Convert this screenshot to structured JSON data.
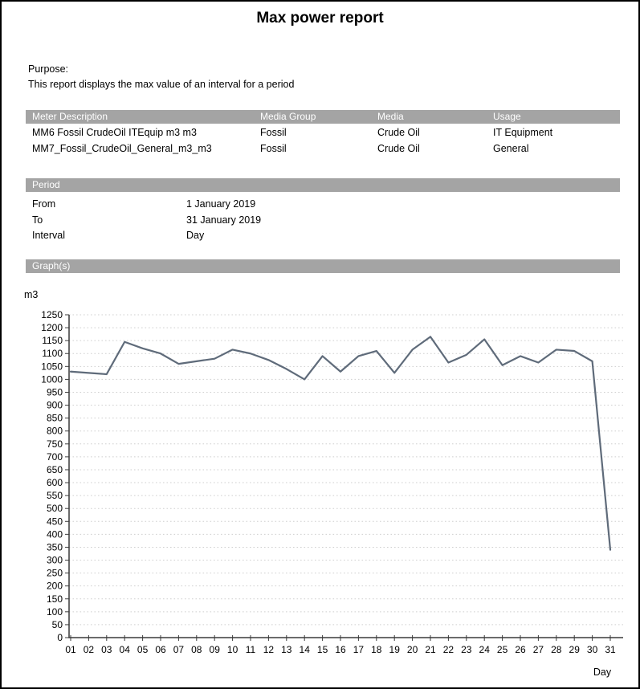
{
  "title": "Max power report",
  "purpose": {
    "label": "Purpose:",
    "text": "This report displays the max value of an interval for a period"
  },
  "meters": {
    "columns": [
      "Meter Description",
      "Media Group",
      "Media",
      "Usage"
    ],
    "rows": [
      {
        "description": "MM6 Fossil CrudeOil ITEquip m3 m3",
        "media_group": "Fossil",
        "media": "Crude Oil",
        "usage": "IT Equipment"
      },
      {
        "description": "MM7_Fossil_CrudeOil_General_m3_m3",
        "media_group": "Fossil",
        "media": "Crude Oil",
        "usage": "General"
      }
    ]
  },
  "period": {
    "header": "Period",
    "rows": [
      {
        "label": "From",
        "value": "1 January 2019"
      },
      {
        "label": "To",
        "value": "31 January 2019"
      },
      {
        "label": "Interval",
        "value": "Day"
      }
    ]
  },
  "graphs": {
    "header": "Graph(s)"
  },
  "chart_data": {
    "type": "line",
    "title": "",
    "xlabel": "Day",
    "ylabel": "m3",
    "categories": [
      "01",
      "02",
      "03",
      "04",
      "05",
      "06",
      "07",
      "08",
      "09",
      "10",
      "11",
      "12",
      "13",
      "14",
      "15",
      "16",
      "17",
      "18",
      "19",
      "20",
      "21",
      "22",
      "23",
      "24",
      "25",
      "26",
      "27",
      "28",
      "29",
      "30",
      "31"
    ],
    "values": [
      1030,
      1025,
      1020,
      1145,
      1120,
      1100,
      1060,
      1070,
      1080,
      1115,
      1100,
      1075,
      1040,
      1000,
      1090,
      1030,
      1090,
      1110,
      1025,
      1115,
      1165,
      1065,
      1095,
      1155,
      1055,
      1090,
      1065,
      1115,
      1110,
      1070,
      340
    ],
    "ylim": [
      0,
      1250
    ],
    "ytick_step": 50,
    "grid": "horizontal-dotted",
    "legend": "none",
    "line_color": "#5f6b7a"
  },
  "colors": {
    "section_bar": "#a4a4a4",
    "section_bar_text": "#ffffff",
    "grid": "#cfcfcf",
    "axis": "#3a3a3a",
    "text": "#000000",
    "line": "#5f6b7a"
  }
}
